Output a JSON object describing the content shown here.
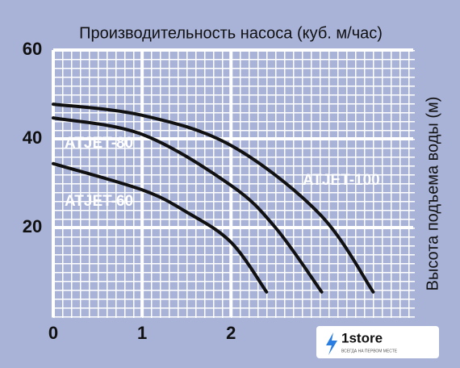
{
  "chart_data": {
    "type": "line",
    "title": "Производительность насоса (куб. м/час)",
    "y_label": "Высота подъема воды (м)",
    "xlim": [
      0,
      4.05
    ],
    "ylim": [
      0,
      60
    ],
    "xticks": [
      0,
      1,
      2
    ],
    "yticks": [
      20,
      40,
      60
    ],
    "grid": true,
    "series": [
      {
        "name": "ATJET-100",
        "color": "#111111",
        "x": [
          0,
          1,
          2,
          3,
          3.6
        ],
        "values": [
          47.8,
          45.3,
          38.5,
          23,
          5.5
        ]
      },
      {
        "name": "ATJET-80",
        "color": "#111111",
        "x": [
          0,
          1,
          2,
          2.5,
          3.02
        ],
        "values": [
          44.7,
          41,
          29.5,
          20,
          5.5
        ]
      },
      {
        "name": "ATJET-60",
        "color": "#111111",
        "x": [
          0,
          1,
          1.5,
          2,
          2.4
        ],
        "values": [
          34.4,
          28.5,
          23.5,
          16.7,
          5.5
        ]
      }
    ],
    "watermark": {
      "text": "1store",
      "tagline": "ВСЕГДА НА ПЕРВОМ МЕСТЕ"
    }
  }
}
